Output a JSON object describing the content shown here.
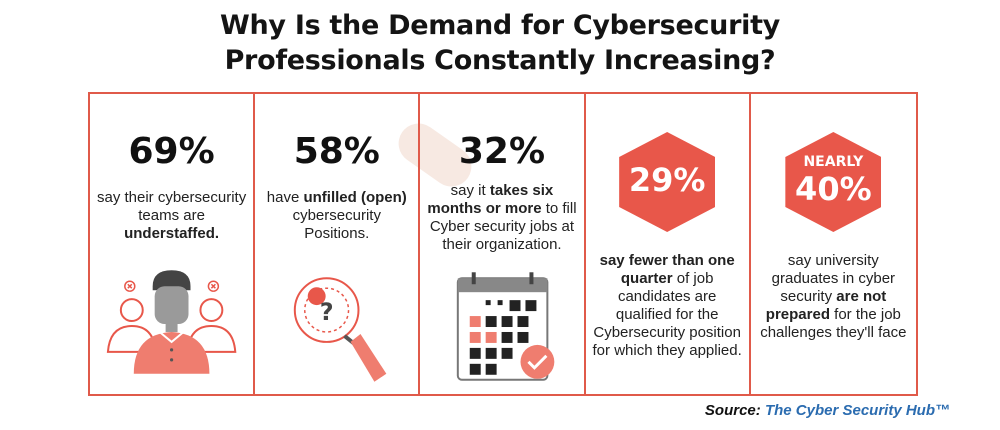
{
  "title": {
    "line1": "Why Is the Demand for Cybersecurity",
    "line2": "Professionals Constantly Increasing?"
  },
  "stats": [
    {
      "value": "69%",
      "pre": "say their cybersecurity teams are ",
      "bold": "understaffed.",
      "post": "",
      "illustration": "understaffed-team-illustration"
    },
    {
      "value": "58%",
      "pre": "have ",
      "bold": "unfilled (open)",
      "post": " cybersecurity Positions.",
      "illustration": "magnifier-question-illustration"
    },
    {
      "value": "32%",
      "pre": "say it ",
      "bold": "takes six months or more",
      "post": " to fill Cyber security jobs at their organization.",
      "illustration": "calendar-check-illustration"
    },
    {
      "value": "29%",
      "pre": "",
      "bold": "say fewer than one quarter",
      "post": " of job candidates are qualified for the Cybersecurity position for which they applied.",
      "illustration": "hexagon-badge"
    },
    {
      "prefix": "NEARLY",
      "value": "40%",
      "pre": "say university graduates in cyber security ",
      "bold": "are not prepared",
      "post": " for the job challenges they'll face",
      "illustration": "hexagon-badge"
    }
  ],
  "source": {
    "label": "Source:",
    "org": "The Cyber Security Hub™"
  },
  "colors": {
    "accent": "#e8574a",
    "border": "#e05a4a",
    "source_link": "#2b6cb0"
  }
}
